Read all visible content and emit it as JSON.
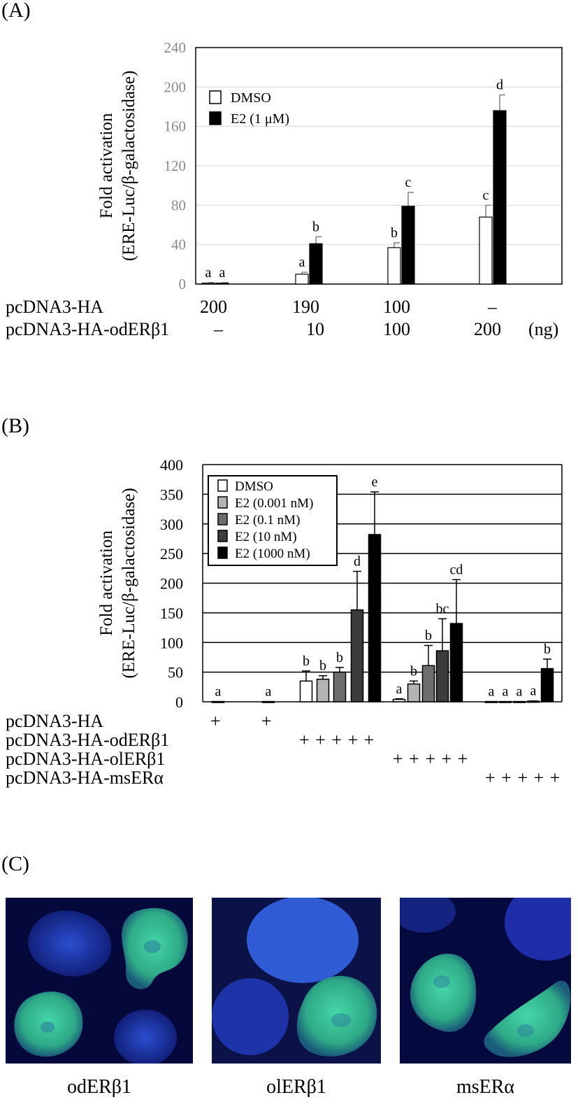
{
  "panels": {
    "a": {
      "label": "(A)",
      "chart_data": {
        "type": "bar",
        "ylabel_line1": "Fold activation",
        "ylabel_line2": "(ERE-Luc/β-galactosidase)",
        "ylim": [
          0,
          240
        ],
        "yticks": [
          "0",
          "40",
          "80",
          "120",
          "160",
          "200",
          "240"
        ],
        "grid": true,
        "legend_position": "top-left",
        "series": [
          {
            "name": "DMSO",
            "color": "#ffffff",
            "values": [
              1,
              10,
              37,
              68
            ],
            "errors": [
              0.5,
              2,
              5,
              12
            ],
            "letters": [
              "a",
              "a",
              "b",
              "c"
            ]
          },
          {
            "name": "E2 (1 μM)",
            "color": "#000000",
            "values": [
              1,
              41,
              79,
              176
            ],
            "errors": [
              0.5,
              7,
              14,
              16
            ],
            "letters": [
              "a",
              "b",
              "c",
              "d"
            ]
          }
        ]
      },
      "rows": [
        {
          "label": "pcDNA3-HA",
          "cells": [
            "200",
            "190",
            "100",
            "–"
          ]
        },
        {
          "label": "pcDNA3-HA-odERβ1",
          "cells": [
            "–",
            "10",
            "100",
            "200"
          ],
          "unit": "(ng)"
        }
      ]
    },
    "b": {
      "label": "(B)",
      "chart_data": {
        "type": "bar",
        "ylabel_line1": "Fold activation",
        "ylabel_line2": "(ERE-Luc/β-galactosidase)",
        "ylim": [
          0,
          400
        ],
        "yticks": [
          "0",
          "50",
          "100",
          "150",
          "200",
          "250",
          "300",
          "350",
          "400"
        ],
        "grid": true,
        "legend_position": "top-left",
        "legend": [
          {
            "name": "DMSO",
            "color": "#ffffff"
          },
          {
            "name": "E2 (0.001 nM)",
            "color": "#b4b4b4"
          },
          {
            "name": "E2 (0.1 nM)",
            "color": "#6e6e6e"
          },
          {
            "name": "E2 (10 nM)",
            "color": "#3c3c3c"
          },
          {
            "name": "E2 (1000 nM)",
            "color": "#000000"
          }
        ],
        "bars": [
          {
            "value": 0.5,
            "error": 0,
            "letter": "a",
            "color": "#ffffff"
          },
          {
            "value": 0.5,
            "error": 0,
            "letter": "a",
            "color": "#ffffff"
          },
          {
            "value": 35,
            "error": 17,
            "letter": "b",
            "color": "#ffffff"
          },
          {
            "value": 38,
            "error": 6,
            "letter": "b",
            "color": "#b4b4b4"
          },
          {
            "value": 50,
            "error": 8,
            "letter": "b",
            "color": "#6e6e6e"
          },
          {
            "value": 155,
            "error": 65,
            "letter": "d",
            "color": "#3c3c3c"
          },
          {
            "value": 282,
            "error": 72,
            "letter": "e",
            "color": "#000000"
          },
          {
            "value": 4,
            "error": 1,
            "letter": "a",
            "color": "#ffffff"
          },
          {
            "value": 30,
            "error": 5,
            "letter": "b",
            "color": "#b4b4b4"
          },
          {
            "value": 61,
            "error": 34,
            "letter": "b",
            "color": "#6e6e6e"
          },
          {
            "value": 86,
            "error": 54,
            "letter": "bc",
            "color": "#3c3c3c"
          },
          {
            "value": 132,
            "error": 74,
            "letter": "cd",
            "color": "#000000"
          },
          {
            "value": 0.5,
            "error": 0,
            "letter": "a",
            "color": "#ffffff"
          },
          {
            "value": 0.5,
            "error": 0,
            "letter": "a",
            "color": "#b4b4b4"
          },
          {
            "value": 0.5,
            "error": 0,
            "letter": "a",
            "color": "#6e6e6e"
          },
          {
            "value": 1,
            "error": 0.5,
            "letter": "a",
            "color": "#3c3c3c"
          },
          {
            "value": 56,
            "error": 16,
            "letter": "b",
            "color": "#000000"
          }
        ]
      },
      "rows": [
        {
          "label": "pcDNA3-HA",
          "marks": [
            "+",
            "+"
          ]
        },
        {
          "label": "pcDNA3-HA-odERβ1",
          "marks": "+ + + + +"
        },
        {
          "label": "pcDNA3-HA-olERβ1",
          "marks": "+ + + + +"
        },
        {
          "label": "pcDNA3-HA-msERα",
          "marks": "+ + + + +"
        }
      ]
    },
    "c": {
      "label": "(C)",
      "images": [
        {
          "caption": "odERβ1"
        },
        {
          "caption": "olERβ1"
        },
        {
          "caption": "msERα"
        }
      ]
    }
  }
}
